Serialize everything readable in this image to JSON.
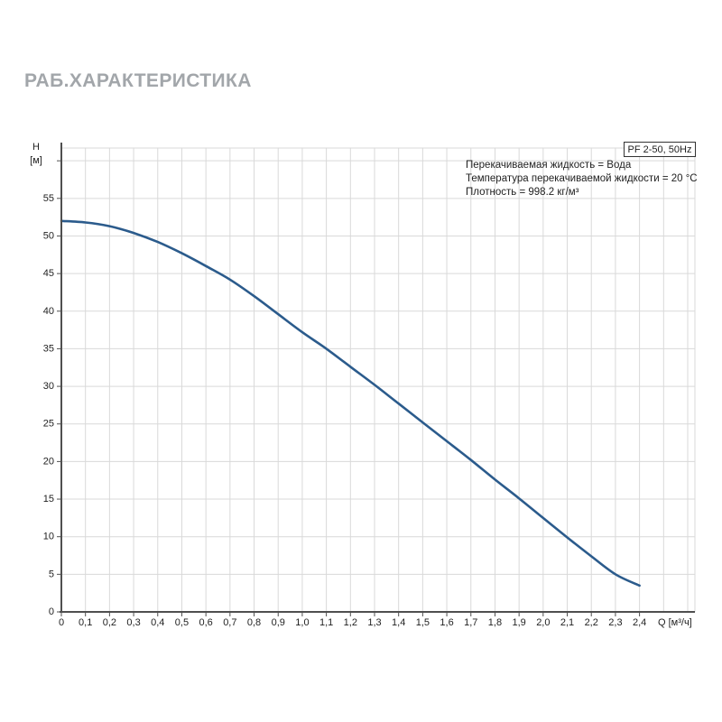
{
  "page": {
    "title": "РАБ.ХАРАКТЕРИСТИКА"
  },
  "chart_data": {
    "type": "line",
    "title": "РАБ.ХАРАКТЕРИСТИКА",
    "legend_box": "PF 2-50, 50Hz",
    "xlabel": "Q [м³/ч]",
    "ylabel_lines": [
      "H",
      "[м]"
    ],
    "annotations": [
      "Перекачиваемая жидкость = Вода",
      "Температура перекачиваемой жидкости = 20 °C",
      "Плотность = 998.2 кг/м³"
    ],
    "xlim": [
      0,
      2.63
    ],
    "ylim": [
      0,
      61.7
    ],
    "xgrid_step": 0.1,
    "xgrid_max": 2.6,
    "ygrid_step": 5,
    "ygrid_max": 60,
    "xticks": {
      "values": [
        0,
        0.1,
        0.2,
        0.3,
        0.4,
        0.5,
        0.6,
        0.7,
        0.8,
        0.9,
        1.0,
        1.1,
        1.2,
        1.3,
        1.4,
        1.5,
        1.6,
        1.7,
        1.8,
        1.9,
        2.0,
        2.1,
        2.2,
        2.3,
        2.4
      ],
      "labels": [
        "0",
        "0,1",
        "0,2",
        "0,3",
        "0,4",
        "0,5",
        "0,6",
        "0,7",
        "0,8",
        "0,9",
        "1,0",
        "1,1",
        "1,2",
        "1,3",
        "1,4",
        "1,5",
        "1,6",
        "1,7",
        "1,8",
        "1,9",
        "2,0",
        "2,1",
        "2,2",
        "2,3",
        "2,4"
      ]
    },
    "yticks": {
      "values": [
        0,
        5,
        10,
        15,
        20,
        25,
        30,
        35,
        40,
        45,
        50,
        55
      ],
      "labels": [
        "0",
        "5",
        "10",
        "15",
        "20",
        "25",
        "30",
        "35",
        "40",
        "45",
        "50",
        "55"
      ]
    },
    "series": [
      {
        "name": "PF 2-50, 50Hz",
        "x": [
          0,
          0.1,
          0.2,
          0.3,
          0.4,
          0.5,
          0.6,
          0.7,
          0.8,
          0.9,
          1.0,
          1.1,
          1.2,
          1.3,
          1.4,
          1.5,
          1.6,
          1.7,
          1.8,
          1.9,
          2.0,
          2.1,
          2.2,
          2.3,
          2.4
        ],
        "y": [
          52.0,
          51.8,
          51.3,
          50.4,
          49.2,
          47.7,
          46.0,
          44.2,
          42.0,
          39.6,
          37.2,
          35.0,
          32.6,
          30.2,
          27.7,
          25.2,
          22.7,
          20.2,
          17.6,
          15.1,
          12.5,
          9.9,
          7.4,
          5.0,
          3.5
        ]
      }
    ],
    "legend_position": "top-right",
    "grid": true,
    "colors": {
      "curve": "#2b5b8c",
      "grid": "#d9d9d9",
      "axis": "#4f4f4f",
      "tick_text": "#1f1f1f",
      "title": "#a2a6aa"
    }
  }
}
